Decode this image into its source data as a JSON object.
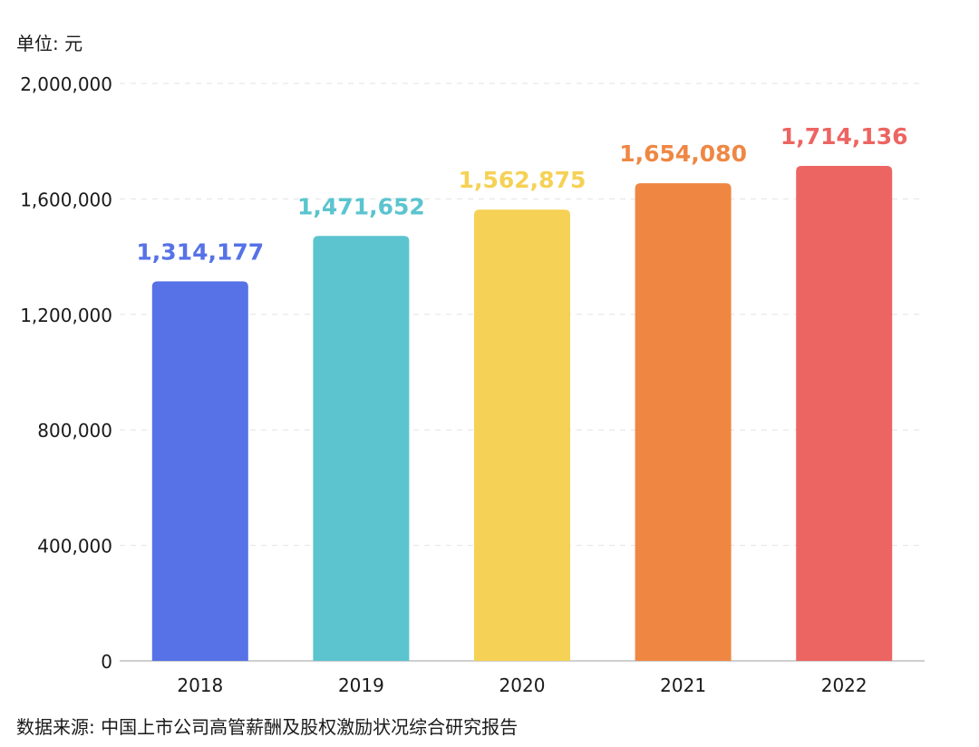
{
  "unit_label": "单位: 元",
  "source_label": "数据来源: 中国上市公司高管薪酬及股权激励状况综合研究报告",
  "chart_data": {
    "type": "bar",
    "categories": [
      "2018",
      "2019",
      "2020",
      "2021",
      "2022"
    ],
    "values": [
      1314177,
      1471652,
      1562875,
      1654080,
      1714136
    ],
    "value_labels": [
      "1,314,177",
      "1,471,652",
      "1,562,875",
      "1,654,080",
      "1,714,136"
    ],
    "bar_colors": [
      "#5672E6",
      "#5BC4CF",
      "#F5D155",
      "#EF8743",
      "#EC6562"
    ],
    "ylim": [
      0,
      2000000
    ],
    "yticks": [
      0,
      400000,
      800000,
      1200000,
      1600000,
      2000000
    ],
    "ytick_labels": [
      "0",
      "400,000",
      "800,000",
      "1,200,000",
      "1,600,000",
      "2,000,000"
    ],
    "grid": true,
    "title": "",
    "xlabel": "",
    "ylabel": ""
  }
}
